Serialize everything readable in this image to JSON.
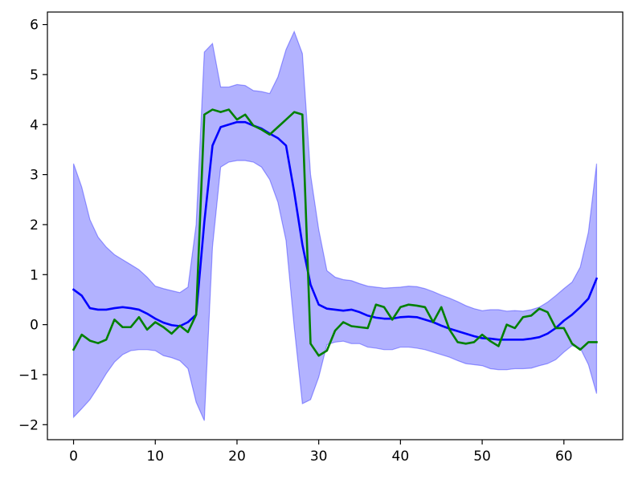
{
  "chart_data": {
    "type": "line",
    "title": "",
    "xlabel": "",
    "ylabel": "",
    "xlim": [
      -3.2,
      67.2
    ],
    "ylim": [
      -2.3,
      6.25
    ],
    "xticks": [
      0,
      10,
      20,
      30,
      40,
      50,
      60
    ],
    "yticks": [
      -2,
      -1,
      0,
      1,
      2,
      3,
      4,
      5,
      6
    ],
    "grid": false,
    "legend": "none",
    "x": [
      0,
      1,
      2,
      3,
      4,
      5,
      6,
      7,
      8,
      9,
      10,
      11,
      12,
      13,
      14,
      15,
      16,
      17,
      18,
      19,
      20,
      21,
      22,
      23,
      24,
      25,
      26,
      27,
      28,
      29,
      30,
      31,
      32,
      33,
      34,
      35,
      36,
      37,
      38,
      39,
      40,
      41,
      42,
      43,
      44,
      45,
      46,
      47,
      48,
      49,
      50,
      51,
      52,
      53,
      54,
      55,
      56,
      57,
      58,
      59,
      60,
      61,
      62,
      63,
      64
    ],
    "band": {
      "color": "#0000ff",
      "opacity": 0.3,
      "upper": [
        3.22,
        2.75,
        2.1,
        1.75,
        1.55,
        1.4,
        1.3,
        1.2,
        1.1,
        0.95,
        0.77,
        0.72,
        0.68,
        0.64,
        0.75,
        2.0,
        5.45,
        5.62,
        4.75,
        4.75,
        4.8,
        4.78,
        4.68,
        4.66,
        4.62,
        4.95,
        5.5,
        5.86,
        5.42,
        3.0,
        1.9,
        1.08,
        0.95,
        0.9,
        0.88,
        0.82,
        0.77,
        0.75,
        0.73,
        0.74,
        0.75,
        0.77,
        0.76,
        0.72,
        0.66,
        0.59,
        0.53,
        0.46,
        0.38,
        0.32,
        0.28,
        0.3,
        0.3,
        0.27,
        0.28,
        0.27,
        0.3,
        0.35,
        0.45,
        0.58,
        0.72,
        0.85,
        1.15,
        1.85,
        3.22
      ],
      "lower": [
        -1.85,
        -1.68,
        -1.5,
        -1.25,
        -0.98,
        -0.75,
        -0.6,
        -0.52,
        -0.5,
        -0.5,
        -0.52,
        -0.62,
        -0.66,
        -0.72,
        -0.88,
        -1.55,
        -1.92,
        1.55,
        3.15,
        3.25,
        3.28,
        3.28,
        3.25,
        3.15,
        2.9,
        2.45,
        1.68,
        -0.05,
        -1.58,
        -1.5,
        -1.05,
        -0.4,
        -0.35,
        -0.33,
        -0.38,
        -0.38,
        -0.45,
        -0.47,
        -0.5,
        -0.5,
        -0.45,
        -0.45,
        -0.47,
        -0.5,
        -0.55,
        -0.6,
        -0.65,
        -0.72,
        -0.78,
        -0.8,
        -0.82,
        -0.88,
        -0.9,
        -0.9,
        -0.88,
        -0.88,
        -0.87,
        -0.82,
        -0.78,
        -0.7,
        -0.55,
        -0.42,
        -0.47,
        -0.8,
        -1.38
      ]
    },
    "series": [
      {
        "color": "#0000ff",
        "values": [
          0.7,
          0.58,
          0.33,
          0.3,
          0.3,
          0.33,
          0.35,
          0.33,
          0.3,
          0.22,
          0.12,
          0.04,
          -0.01,
          -0.03,
          0.05,
          0.2,
          2.05,
          3.58,
          3.95,
          4.0,
          4.05,
          4.05,
          3.98,
          3.92,
          3.82,
          3.73,
          3.58,
          2.65,
          1.6,
          0.8,
          0.4,
          0.32,
          0.3,
          0.28,
          0.3,
          0.25,
          0.18,
          0.14,
          0.12,
          0.12,
          0.15,
          0.16,
          0.15,
          0.1,
          0.05,
          -0.02,
          -0.08,
          -0.13,
          -0.18,
          -0.23,
          -0.27,
          -0.28,
          -0.3,
          -0.3,
          -0.3,
          -0.3,
          -0.28,
          -0.25,
          -0.18,
          -0.07,
          0.08,
          0.2,
          0.35,
          0.52,
          0.92
        ]
      },
      {
        "color": "#008000",
        "values": [
          -0.5,
          -0.2,
          -0.32,
          -0.37,
          -0.3,
          0.1,
          -0.05,
          -0.05,
          0.15,
          -0.1,
          0.05,
          -0.05,
          -0.18,
          -0.02,
          -0.15,
          0.2,
          4.2,
          4.3,
          4.25,
          4.3,
          4.1,
          4.2,
          3.98,
          3.9,
          3.8,
          3.95,
          4.1,
          4.25,
          4.2,
          -0.38,
          -0.62,
          -0.52,
          -0.12,
          0.05,
          -0.03,
          -0.05,
          -0.07,
          0.4,
          0.35,
          0.1,
          0.35,
          0.4,
          0.38,
          0.35,
          0.05,
          0.35,
          -0.1,
          -0.35,
          -0.38,
          -0.35,
          -0.2,
          -0.33,
          -0.43,
          0.0,
          -0.07,
          0.15,
          0.18,
          0.32,
          0.25,
          -0.07,
          -0.07,
          -0.38,
          -0.5,
          -0.35,
          -0.35
        ]
      }
    ]
  }
}
